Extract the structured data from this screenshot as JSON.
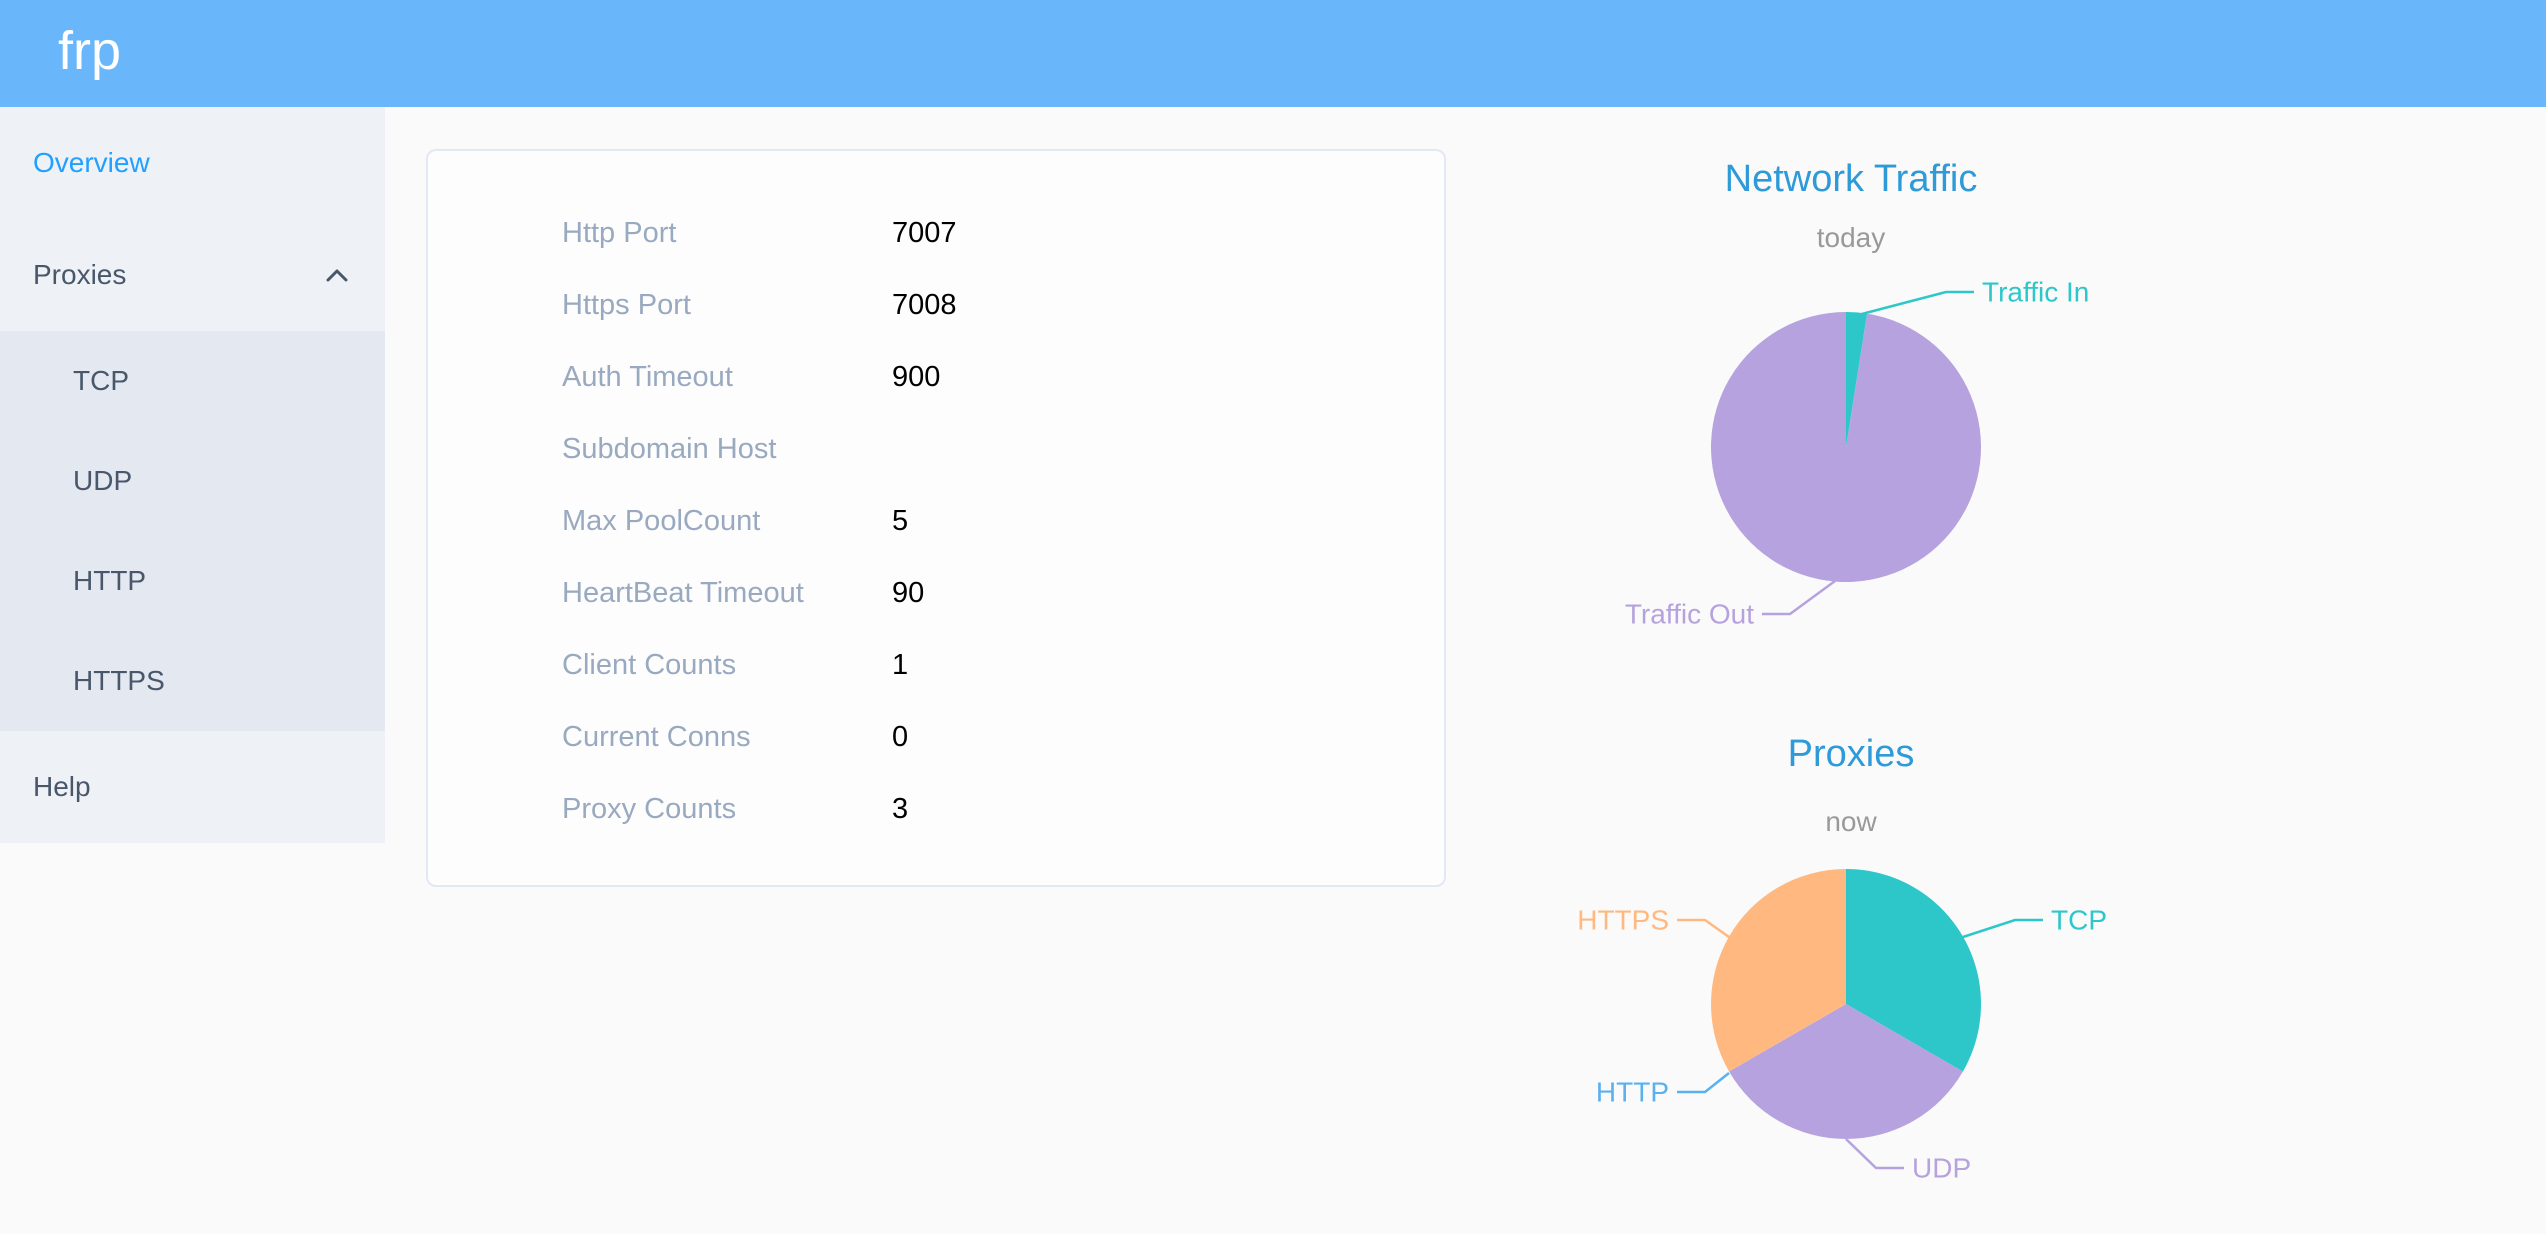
{
  "app": {
    "logo_text": "frp"
  },
  "colors": {
    "header_bg": "#69B7FA",
    "sidebar_bg": "#EEF1F6",
    "submenu_bg": "#E4E8F1",
    "menu_text": "#48576A",
    "menu_active": "#20A0FF",
    "chart_title_blue": "#2E9AD8",
    "subtitle_gray": "#999999",
    "teal": "#2EC7C9",
    "purple": "#B6A2DE",
    "blue": "#5AB1EF",
    "orange": "#FFB980"
  },
  "sidebar": {
    "items": [
      {
        "label": "Overview",
        "active": true
      },
      {
        "label": "Proxies",
        "expanded": true,
        "children": [
          {
            "label": "TCP"
          },
          {
            "label": "UDP"
          },
          {
            "label": "HTTP"
          },
          {
            "label": "HTTPS"
          }
        ]
      },
      {
        "label": "Help",
        "active": false
      }
    ]
  },
  "server_info": {
    "rows": [
      {
        "label": "Http Port",
        "value": "7007"
      },
      {
        "label": "Https Port",
        "value": "7008"
      },
      {
        "label": "Auth Timeout",
        "value": "900"
      },
      {
        "label": "Subdomain Host",
        "value": ""
      },
      {
        "label": "Max PoolCount",
        "value": "5"
      },
      {
        "label": "HeartBeat Timeout",
        "value": "90"
      },
      {
        "label": "Client Counts",
        "value": "1"
      },
      {
        "label": "Current Conns",
        "value": "0"
      },
      {
        "label": "Proxy Counts",
        "value": "3"
      }
    ]
  },
  "chart_data": [
    {
      "type": "pie",
      "title": "Network Traffic",
      "subtitle": "today",
      "legend_position": "none",
      "value_unit": "percent of circle (estimated from slice angles; byte totals not shown on screen)",
      "series": [
        {
          "name": "Traffic In",
          "value": 2.5,
          "color": "#2EC7C9"
        },
        {
          "name": "Traffic Out",
          "value": 97.5,
          "color": "#B6A2DE"
        }
      ]
    },
    {
      "type": "pie",
      "title": "Proxies",
      "subtitle": "now",
      "legend_position": "none",
      "value_unit": "proxy count",
      "series": [
        {
          "name": "TCP",
          "value": 1,
          "color": "#2EC7C9"
        },
        {
          "name": "UDP",
          "value": 1,
          "color": "#B6A2DE"
        },
        {
          "name": "HTTP",
          "value": 0,
          "color": "#5AB1EF"
        },
        {
          "name": "HTTPS",
          "value": 1,
          "color": "#FFB980"
        }
      ]
    }
  ]
}
